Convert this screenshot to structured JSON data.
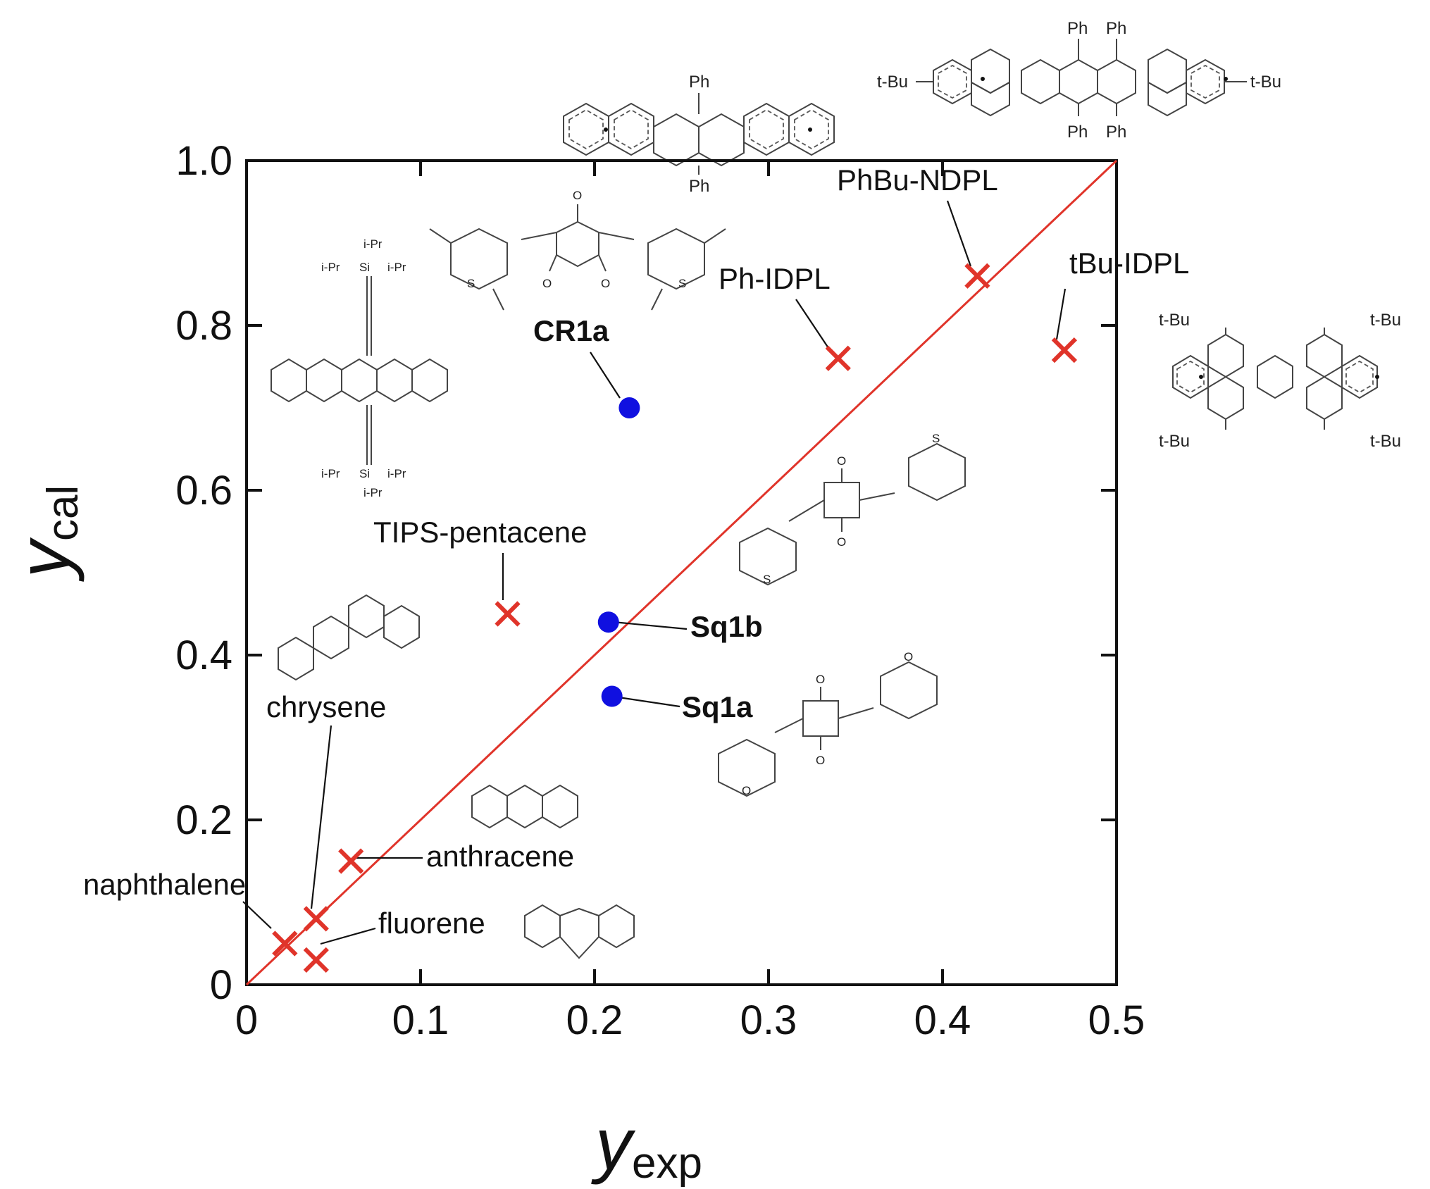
{
  "chart_data": {
    "type": "scatter",
    "xlabel": {
      "main": "y",
      "sub": "exp"
    },
    "ylabel": {
      "main": "y",
      "sub": "cal"
    },
    "xlim": [
      0,
      0.5
    ],
    "ylim": [
      0,
      1.0
    ],
    "x_ticks": [
      "0",
      "0.1",
      "0.2",
      "0.3",
      "0.4",
      "0.5"
    ],
    "y_ticks": [
      "0",
      "0.2",
      "0.4",
      "0.6",
      "0.8",
      "1.0"
    ],
    "reference_line": {
      "x": [
        0,
        0.5
      ],
      "y": [
        0,
        1.0
      ],
      "color": "#e0342a"
    },
    "series": [
      {
        "marker": "cross",
        "color": "#e0342a",
        "points": [
          {
            "label": "naphthalene",
            "x": 0.022,
            "y": 0.05
          },
          {
            "label": "chrysene",
            "x": 0.04,
            "y": 0.08
          },
          {
            "label": "fluorene",
            "x": 0.04,
            "y": 0.03
          },
          {
            "label": "anthracene",
            "x": 0.06,
            "y": 0.15
          },
          {
            "label": "TIPS-pentacene",
            "x": 0.15,
            "y": 0.45
          },
          {
            "label": "Ph-IDPL",
            "x": 0.34,
            "y": 0.76
          },
          {
            "label": "PhBu-NDPL",
            "x": 0.42,
            "y": 0.86
          },
          {
            "label": "tBu-IDPL",
            "x": 0.47,
            "y": 0.77
          }
        ]
      },
      {
        "marker": "circle",
        "color": "#1010e0",
        "points": [
          {
            "label": "CR1a",
            "x": 0.22,
            "y": 0.7
          },
          {
            "label": "Sq1b",
            "x": 0.208,
            "y": 0.44
          },
          {
            "label": "Sq1a",
            "x": 0.21,
            "y": 0.35
          }
        ]
      }
    ]
  },
  "structure_labels": {
    "ph": "Ph",
    "tbu": "t-Bu",
    "ipr": "i-Pr",
    "si": "Si",
    "s": "S",
    "o": "O"
  }
}
